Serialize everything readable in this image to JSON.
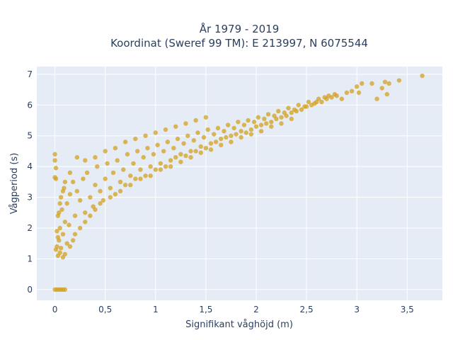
{
  "chart_data": {
    "type": "scatter",
    "title_lines": [
      "År 1979 - 2019",
      "Koordinat (Sweref 99 TM): E 213997, N 6075544"
    ],
    "xlabel": "Signifikant våghöjd (m)",
    "ylabel": "Vågperiod (s)",
    "xlim": [
      -0.18,
      3.85
    ],
    "ylim": [
      -0.35,
      7.25
    ],
    "x_ticks": [
      0,
      0.5,
      1,
      1.5,
      2,
      2.5,
      3,
      3.5
    ],
    "x_tick_labels": [
      "0",
      "0,5",
      "1",
      "1,5",
      "2",
      "2,5",
      "3",
      "3,5"
    ],
    "y_ticks": [
      0,
      1,
      2,
      3,
      4,
      5,
      6,
      7
    ],
    "y_tick_labels": [
      "0",
      "1",
      "2",
      "3",
      "4",
      "5",
      "6",
      "7"
    ],
    "grid": true,
    "legend": "none",
    "colors": {
      "marker": "#D4A21F",
      "plot_background": "#E5ECF6",
      "grid": "#FFFFFF",
      "text": "#2A3F5F"
    },
    "points": [
      [
        0.0,
        0.0
      ],
      [
        0.02,
        0.0
      ],
      [
        0.04,
        0.0
      ],
      [
        0.06,
        0.0
      ],
      [
        0.08,
        0.0
      ],
      [
        0.1,
        0.0
      ],
      [
        0.0,
        4.4
      ],
      [
        0.0,
        4.2
      ],
      [
        0.01,
        3.95
      ],
      [
        0.01,
        3.6
      ],
      [
        0.0,
        3.65
      ],
      [
        0.03,
        1.1
      ],
      [
        0.05,
        1.2
      ],
      [
        0.08,
        1.05
      ],
      [
        0.1,
        1.15
      ],
      [
        0.06,
        1.35
      ],
      [
        0.04,
        1.6
      ],
      [
        0.08,
        1.8
      ],
      [
        0.12,
        1.5
      ],
      [
        0.05,
        2.0
      ],
      [
        0.1,
        2.2
      ],
      [
        0.03,
        2.4
      ],
      [
        0.07,
        2.6
      ],
      [
        0.12,
        2.8
      ],
      [
        0.06,
        3.0
      ],
      [
        0.15,
        3.1
      ],
      [
        0.09,
        3.3
      ],
      [
        0.18,
        3.5
      ],
      [
        0.14,
        2.1
      ],
      [
        0.2,
        2.4
      ],
      [
        0.22,
        3.2
      ],
      [
        0.25,
        2.9
      ],
      [
        0.28,
        3.6
      ],
      [
        0.3,
        2.5
      ],
      [
        0.32,
        3.8
      ],
      [
        0.35,
        3.0
      ],
      [
        0.38,
        2.7
      ],
      [
        0.4,
        3.4
      ],
      [
        0.42,
        4.0
      ],
      [
        0.45,
        3.2
      ],
      [
        0.48,
        2.9
      ],
      [
        0.5,
        3.6
      ],
      [
        0.52,
        4.1
      ],
      [
        0.55,
        3.3
      ],
      [
        0.58,
        3.8
      ],
      [
        0.6,
        3.1
      ],
      [
        0.62,
        4.2
      ],
      [
        0.65,
        3.5
      ],
      [
        0.68,
        3.9
      ],
      [
        0.7,
        3.4
      ],
      [
        0.72,
        4.4
      ],
      [
        0.75,
        3.7
      ],
      [
        0.78,
        4.1
      ],
      [
        0.8,
        3.6
      ],
      [
        0.82,
        4.5
      ],
      [
        0.85,
        3.9
      ],
      [
        0.88,
        4.3
      ],
      [
        0.9,
        3.7
      ],
      [
        0.92,
        4.6
      ],
      [
        0.95,
        4.0
      ],
      [
        0.98,
        4.4
      ],
      [
        1.0,
        3.9
      ],
      [
        1.02,
        4.7
      ],
      [
        1.05,
        4.1
      ],
      [
        1.08,
        4.5
      ],
      [
        1.1,
        4.0
      ],
      [
        1.12,
        4.8
      ],
      [
        1.15,
        4.2
      ],
      [
        1.18,
        4.6
      ],
      [
        1.2,
        4.3
      ],
      [
        1.22,
        4.9
      ],
      [
        1.25,
        4.4
      ],
      [
        1.28,
        4.75
      ],
      [
        1.3,
        4.35
      ],
      [
        1.32,
        5.0
      ],
      [
        1.35,
        4.5
      ],
      [
        1.38,
        4.85
      ],
      [
        1.4,
        4.5
      ],
      [
        1.42,
        5.1
      ],
      [
        1.45,
        4.65
      ],
      [
        1.48,
        4.95
      ],
      [
        1.5,
        4.6
      ],
      [
        1.52,
        5.2
      ],
      [
        1.55,
        4.75
      ],
      [
        1.58,
        5.05
      ],
      [
        1.6,
        4.8
      ],
      [
        1.62,
        5.25
      ],
      [
        1.65,
        4.9
      ],
      [
        1.68,
        5.15
      ],
      [
        1.7,
        4.95
      ],
      [
        1.72,
        5.35
      ],
      [
        1.75,
        5.0
      ],
      [
        1.78,
        5.25
      ],
      [
        1.8,
        5.05
      ],
      [
        1.82,
        5.45
      ],
      [
        1.85,
        5.15
      ],
      [
        1.88,
        5.35
      ],
      [
        1.9,
        5.1
      ],
      [
        1.92,
        5.5
      ],
      [
        1.95,
        5.2
      ],
      [
        1.98,
        5.45
      ],
      [
        2.0,
        5.3
      ],
      [
        2.02,
        5.6
      ],
      [
        2.05,
        5.35
      ],
      [
        2.08,
        5.55
      ],
      [
        2.1,
        5.4
      ],
      [
        2.12,
        5.7
      ],
      [
        2.15,
        5.45
      ],
      [
        2.18,
        5.65
      ],
      [
        2.2,
        5.55
      ],
      [
        2.22,
        5.8
      ],
      [
        2.25,
        5.6
      ],
      [
        2.28,
        5.75
      ],
      [
        2.3,
        5.65
      ],
      [
        2.32,
        5.9
      ],
      [
        2.35,
        5.75
      ],
      [
        2.38,
        5.85
      ],
      [
        2.4,
        5.8
      ],
      [
        2.42,
        6.0
      ],
      [
        2.45,
        5.85
      ],
      [
        2.48,
        5.95
      ],
      [
        2.5,
        5.95
      ],
      [
        2.52,
        6.1
      ],
      [
        2.55,
        6.0
      ],
      [
        2.58,
        6.05
      ],
      [
        2.6,
        6.1
      ],
      [
        2.62,
        6.2
      ],
      [
        2.65,
        6.1
      ],
      [
        2.68,
        6.25
      ],
      [
        2.7,
        6.2
      ],
      [
        2.72,
        6.3
      ],
      [
        2.75,
        6.25
      ],
      [
        2.78,
        6.35
      ],
      [
        2.8,
        6.3
      ],
      [
        2.85,
        6.2
      ],
      [
        2.9,
        6.4
      ],
      [
        2.95,
        6.45
      ],
      [
        3.0,
        6.6
      ],
      [
        3.02,
        6.4
      ],
      [
        3.05,
        6.7
      ],
      [
        3.15,
        6.7
      ],
      [
        3.2,
        6.2
      ],
      [
        3.25,
        6.55
      ],
      [
        3.28,
        6.75
      ],
      [
        3.3,
        6.35
      ],
      [
        3.32,
        6.7
      ],
      [
        3.42,
        6.8
      ],
      [
        3.65,
        6.95
      ],
      [
        0.2,
        1.8
      ],
      [
        0.25,
        2.0
      ],
      [
        0.3,
        2.2
      ],
      [
        0.15,
        1.4
      ],
      [
        0.18,
        1.6
      ],
      [
        0.35,
        2.4
      ],
      [
        0.4,
        2.6
      ],
      [
        0.45,
        2.8
      ],
      [
        0.55,
        3.0
      ],
      [
        0.65,
        3.2
      ],
      [
        0.75,
        3.4
      ],
      [
        0.85,
        3.6
      ],
      [
        0.95,
        3.7
      ],
      [
        1.05,
        3.9
      ],
      [
        1.15,
        4.0
      ],
      [
        1.25,
        4.15
      ],
      [
        1.35,
        4.3
      ],
      [
        1.45,
        4.45
      ],
      [
        1.55,
        4.55
      ],
      [
        1.65,
        4.7
      ],
      [
        1.75,
        4.8
      ],
      [
        1.85,
        4.95
      ],
      [
        1.95,
        5.05
      ],
      [
        2.05,
        5.15
      ],
      [
        2.15,
        5.3
      ],
      [
        2.25,
        5.4
      ],
      [
        2.35,
        5.55
      ],
      [
        0.3,
        4.2
      ],
      [
        0.4,
        4.3
      ],
      [
        0.5,
        4.5
      ],
      [
        0.6,
        4.6
      ],
      [
        0.7,
        4.8
      ],
      [
        0.8,
        4.9
      ],
      [
        0.9,
        5.0
      ],
      [
        1.0,
        5.1
      ],
      [
        1.1,
        5.2
      ],
      [
        1.2,
        5.3
      ],
      [
        1.3,
        5.4
      ],
      [
        1.4,
        5.5
      ],
      [
        1.5,
        5.6
      ],
      [
        0.22,
        4.3
      ],
      [
        0.15,
        3.8
      ],
      [
        0.1,
        3.5
      ],
      [
        0.08,
        3.2
      ],
      [
        0.05,
        2.8
      ],
      [
        0.04,
        2.5
      ],
      [
        0.02,
        1.9
      ],
      [
        0.02,
        1.4
      ],
      [
        0.01,
        1.3
      ],
      [
        0.03,
        1.7
      ]
    ]
  }
}
